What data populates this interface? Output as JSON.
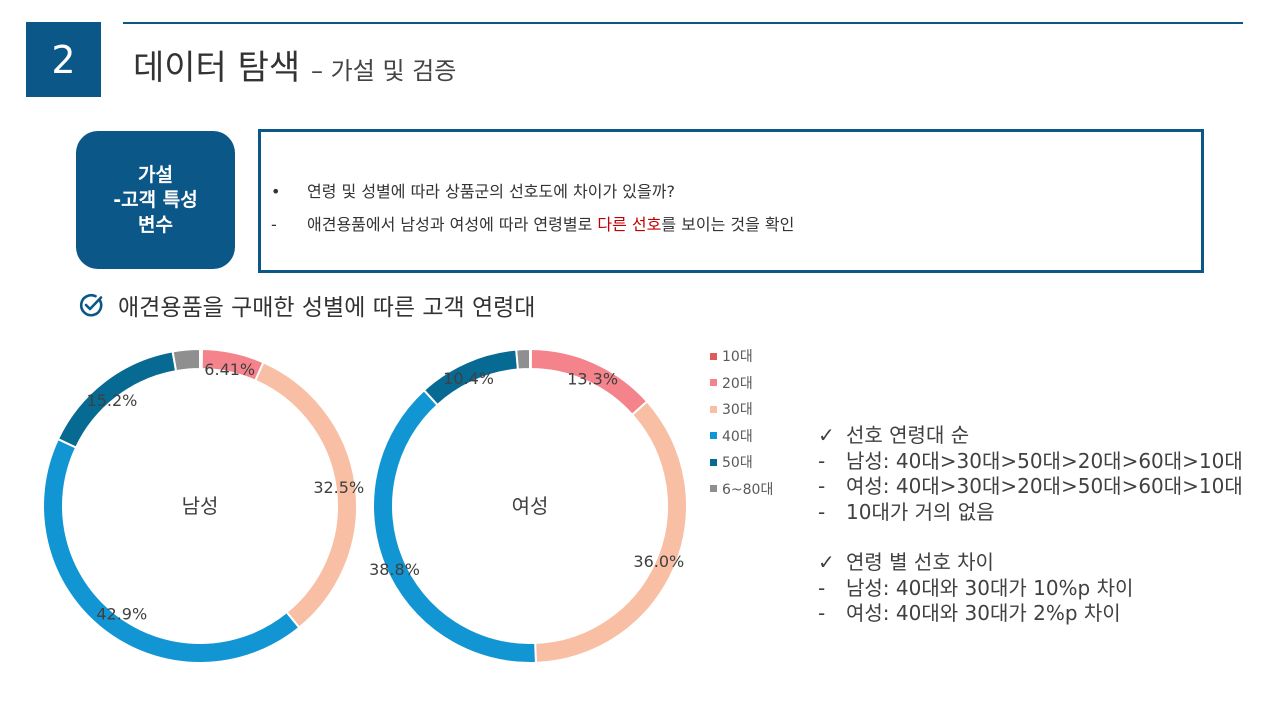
{
  "header": {
    "section_number": "2",
    "title": "데이터 탐색",
    "subtitle": "– 가설 및 검증"
  },
  "hypothesis": {
    "tag_lines": [
      "가설",
      "-고객 특성",
      "변수"
    ],
    "question": "연령 및 성별에 따라 상품군의 선호도에 차이가 있을까?",
    "finding_before": "애견용품에서 남성과 여성에 따라 연령별로 ",
    "finding_highlight": "다른 선호",
    "finding_after": "를 보이는 것을 확인"
  },
  "section_title": "애견용품을 구매한 성별에 따른 고객 연령대",
  "chart_data": {
    "type": "donut",
    "categories": [
      "10대",
      "20대",
      "30대",
      "40대",
      "50대",
      "6~80대"
    ],
    "colors": [
      "#e05a5a",
      "#f4838b",
      "#f8bfa5",
      "#1296d3",
      "#066a93",
      "#8f8f8f"
    ],
    "legend_position": "right",
    "series": [
      {
        "name": "남성",
        "values": [
          0.2,
          6.41,
          32.5,
          42.9,
          15.2,
          2.79
        ],
        "labels": [
          "",
          "6.41%",
          "32.5%",
          "42.9%",
          "15.2%",
          ""
        ]
      },
      {
        "name": "여성",
        "values": [
          0.1,
          13.3,
          36.0,
          38.8,
          10.4,
          1.4
        ],
        "labels": [
          "",
          "13.3%",
          "36.0%",
          "38.8%",
          "10.4%",
          ""
        ]
      }
    ]
  },
  "notes": {
    "group1": {
      "heading": "선호 연령대 순",
      "items": [
        "남성: 40대>30대>50대>20대>60대>10대",
        "여성: 40대>30대>20대>50대>60대>10대",
        "10대가 거의 없음"
      ]
    },
    "group2": {
      "heading": "연령 별 선호 차이",
      "items": [
        "남성: 40대와 30대가 10%p 차이",
        "여성: 40대와 30대가 2%p 차이"
      ]
    },
    "check_mark": "✓",
    "dash_mark": "-"
  }
}
